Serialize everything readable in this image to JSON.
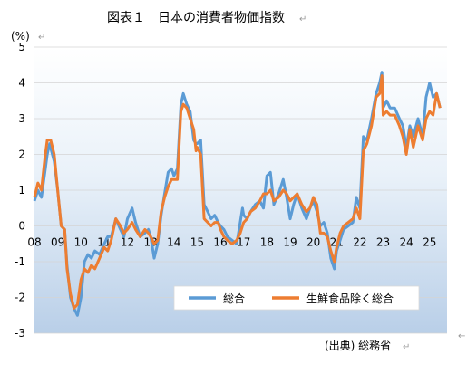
{
  "chart_data": {
    "type": "line",
    "title": "図表１　日本の消費者物価指数",
    "unit_label": "(%)",
    "source": "(出典) 総務省",
    "ylim": [
      -3,
      5
    ],
    "yticks": [
      5,
      4,
      3,
      2,
      1,
      0,
      -1,
      -2,
      -3
    ],
    "xlim": [
      2008.0,
      2025.75
    ],
    "xticks": [
      {
        "label": "08",
        "x": 2008.0
      },
      {
        "label": "09",
        "x": 2009.0
      },
      {
        "label": "10",
        "x": 2010.0
      },
      {
        "label": "11",
        "x": 2011.0
      },
      {
        "label": "12",
        "x": 2012.0
      },
      {
        "label": "13",
        "x": 2013.0
      },
      {
        "label": "14",
        "x": 2014.0
      },
      {
        "label": "15",
        "x": 2015.0
      },
      {
        "label": "16",
        "x": 2016.0
      },
      {
        "label": "17",
        "x": 2017.0
      },
      {
        "label": "18",
        "x": 2018.0
      },
      {
        "label": "19",
        "x": 2019.0
      },
      {
        "label": "20",
        "x": 2020.0
      },
      {
        "label": "21",
        "x": 2021.0
      },
      {
        "label": "22",
        "x": 2022.0
      },
      {
        "label": "23",
        "x": 2023.0
      },
      {
        "label": "24",
        "x": 2024.0
      },
      {
        "label": "25",
        "x": 2025.0
      }
    ],
    "legend_position": "bottom-right",
    "grid": true,
    "series": [
      {
        "name": "総合",
        "color": "#5B9BD5",
        "points": [
          [
            2008.0,
            0.7
          ],
          [
            2008.15,
            1.0
          ],
          [
            2008.3,
            0.8
          ],
          [
            2008.45,
            1.5
          ],
          [
            2008.55,
            2.0
          ],
          [
            2008.65,
            2.3
          ],
          [
            2008.85,
            1.8
          ],
          [
            2009.0,
            1.0
          ],
          [
            2009.15,
            0.0
          ],
          [
            2009.3,
            -0.1
          ],
          [
            2009.4,
            -1.1
          ],
          [
            2009.55,
            -2.0
          ],
          [
            2009.7,
            -2.3
          ],
          [
            2009.85,
            -2.5
          ],
          [
            2010.0,
            -2.0
          ],
          [
            2010.15,
            -1.0
          ],
          [
            2010.3,
            -0.8
          ],
          [
            2010.45,
            -0.9
          ],
          [
            2010.6,
            -0.7
          ],
          [
            2010.8,
            -0.8
          ],
          [
            2011.0,
            -0.5
          ],
          [
            2011.15,
            -0.3
          ],
          [
            2011.3,
            -0.3
          ],
          [
            2011.5,
            0.2
          ],
          [
            2011.7,
            -0.1
          ],
          [
            2011.85,
            -0.3
          ],
          [
            2012.0,
            0.2
          ],
          [
            2012.2,
            0.5
          ],
          [
            2012.35,
            0.1
          ],
          [
            2012.55,
            -0.3
          ],
          [
            2012.75,
            -0.2
          ],
          [
            2012.9,
            -0.1
          ],
          [
            2013.0,
            -0.3
          ],
          [
            2013.15,
            -0.9
          ],
          [
            2013.3,
            -0.5
          ],
          [
            2013.45,
            0.3
          ],
          [
            2013.6,
            0.9
          ],
          [
            2013.75,
            1.5
          ],
          [
            2013.9,
            1.6
          ],
          [
            2014.0,
            1.4
          ],
          [
            2014.15,
            1.6
          ],
          [
            2014.3,
            3.4
          ],
          [
            2014.4,
            3.7
          ],
          [
            2014.55,
            3.4
          ],
          [
            2014.7,
            3.2
          ],
          [
            2014.85,
            2.4
          ],
          [
            2014.95,
            2.3
          ],
          [
            2015.0,
            2.3
          ],
          [
            2015.15,
            2.4
          ],
          [
            2015.3,
            0.6
          ],
          [
            2015.45,
            0.4
          ],
          [
            2015.6,
            0.2
          ],
          [
            2015.75,
            0.3
          ],
          [
            2015.9,
            0.1
          ],
          [
            2016.0,
            0.0
          ],
          [
            2016.15,
            -0.1
          ],
          [
            2016.3,
            -0.3
          ],
          [
            2016.5,
            -0.4
          ],
          [
            2016.7,
            -0.5
          ],
          [
            2016.85,
            0.1
          ],
          [
            2016.95,
            0.5
          ],
          [
            2017.0,
            0.3
          ],
          [
            2017.15,
            0.2
          ],
          [
            2017.3,
            0.4
          ],
          [
            2017.5,
            0.6
          ],
          [
            2017.7,
            0.7
          ],
          [
            2017.85,
            0.5
          ],
          [
            2018.0,
            1.4
          ],
          [
            2018.15,
            1.5
          ],
          [
            2018.3,
            0.6
          ],
          [
            2018.5,
            0.9
          ],
          [
            2018.7,
            1.3
          ],
          [
            2018.85,
            0.8
          ],
          [
            2019.0,
            0.2
          ],
          [
            2019.15,
            0.6
          ],
          [
            2019.3,
            0.9
          ],
          [
            2019.5,
            0.5
          ],
          [
            2019.7,
            0.2
          ],
          [
            2019.85,
            0.5
          ],
          [
            2020.0,
            0.7
          ],
          [
            2020.15,
            0.4
          ],
          [
            2020.3,
            0.0
          ],
          [
            2020.45,
            0.1
          ],
          [
            2020.6,
            -0.2
          ],
          [
            2020.75,
            -0.9
          ],
          [
            2020.9,
            -1.2
          ],
          [
            2021.0,
            -0.7
          ],
          [
            2021.15,
            -0.4
          ],
          [
            2021.3,
            -0.1
          ],
          [
            2021.5,
            0.0
          ],
          [
            2021.7,
            0.1
          ],
          [
            2021.85,
            0.8
          ],
          [
            2022.0,
            0.5
          ],
          [
            2022.15,
            2.5
          ],
          [
            2022.3,
            2.4
          ],
          [
            2022.5,
            3.0
          ],
          [
            2022.7,
            3.7
          ],
          [
            2022.85,
            4.0
          ],
          [
            2022.95,
            4.3
          ],
          [
            2023.0,
            3.3
          ],
          [
            2023.15,
            3.5
          ],
          [
            2023.3,
            3.3
          ],
          [
            2023.5,
            3.3
          ],
          [
            2023.7,
            3.0
          ],
          [
            2023.85,
            2.8
          ],
          [
            2024.0,
            2.2
          ],
          [
            2024.15,
            2.8
          ],
          [
            2024.3,
            2.5
          ],
          [
            2024.5,
            3.0
          ],
          [
            2024.7,
            2.5
          ],
          [
            2024.85,
            3.6
          ],
          [
            2025.0,
            4.0
          ],
          [
            2025.15,
            3.6
          ],
          [
            2025.3,
            3.7
          ],
          [
            2025.45,
            3.3
          ]
        ]
      },
      {
        "name": "生鮮食品除く総合",
        "color": "#ED7D31",
        "points": [
          [
            2008.0,
            0.8
          ],
          [
            2008.15,
            1.2
          ],
          [
            2008.3,
            1.0
          ],
          [
            2008.45,
            1.9
          ],
          [
            2008.55,
            2.4
          ],
          [
            2008.7,
            2.4
          ],
          [
            2008.85,
            2.0
          ],
          [
            2009.0,
            1.0
          ],
          [
            2009.15,
            0.0
          ],
          [
            2009.3,
            -0.1
          ],
          [
            2009.4,
            -1.2
          ],
          [
            2009.55,
            -1.9
          ],
          [
            2009.7,
            -2.3
          ],
          [
            2009.85,
            -2.2
          ],
          [
            2010.0,
            -1.5
          ],
          [
            2010.15,
            -1.2
          ],
          [
            2010.3,
            -1.3
          ],
          [
            2010.45,
            -1.1
          ],
          [
            2010.6,
            -1.2
          ],
          [
            2010.8,
            -0.9
          ],
          [
            2011.0,
            -0.6
          ],
          [
            2011.15,
            -0.7
          ],
          [
            2011.3,
            -0.4
          ],
          [
            2011.5,
            0.2
          ],
          [
            2011.7,
            0.0
          ],
          [
            2011.85,
            -0.2
          ],
          [
            2012.0,
            -0.1
          ],
          [
            2012.2,
            0.1
          ],
          [
            2012.35,
            -0.1
          ],
          [
            2012.55,
            -0.3
          ],
          [
            2012.75,
            -0.1
          ],
          [
            2012.9,
            -0.2
          ],
          [
            2013.0,
            -0.3
          ],
          [
            2013.15,
            -0.5
          ],
          [
            2013.3,
            -0.4
          ],
          [
            2013.45,
            0.4
          ],
          [
            2013.6,
            0.8
          ],
          [
            2013.75,
            1.1
          ],
          [
            2013.9,
            1.3
          ],
          [
            2014.0,
            1.3
          ],
          [
            2014.15,
            1.3
          ],
          [
            2014.3,
            3.2
          ],
          [
            2014.4,
            3.4
          ],
          [
            2014.55,
            3.3
          ],
          [
            2014.7,
            3.0
          ],
          [
            2014.85,
            2.7
          ],
          [
            2014.95,
            2.1
          ],
          [
            2015.0,
            2.2
          ],
          [
            2015.15,
            2.0
          ],
          [
            2015.3,
            0.2
          ],
          [
            2015.45,
            0.1
          ],
          [
            2015.6,
            0.0
          ],
          [
            2015.75,
            0.1
          ],
          [
            2015.9,
            0.1
          ],
          [
            2016.0,
            -0.1
          ],
          [
            2016.15,
            -0.3
          ],
          [
            2016.3,
            -0.4
          ],
          [
            2016.5,
            -0.5
          ],
          [
            2016.7,
            -0.4
          ],
          [
            2016.85,
            -0.2
          ],
          [
            2016.95,
            0.0
          ],
          [
            2017.0,
            0.1
          ],
          [
            2017.15,
            0.2
          ],
          [
            2017.3,
            0.4
          ],
          [
            2017.5,
            0.5
          ],
          [
            2017.7,
            0.7
          ],
          [
            2017.85,
            0.9
          ],
          [
            2018.0,
            0.9
          ],
          [
            2018.15,
            1.0
          ],
          [
            2018.3,
            0.7
          ],
          [
            2018.5,
            0.8
          ],
          [
            2018.7,
            1.0
          ],
          [
            2018.85,
            0.9
          ],
          [
            2019.0,
            0.7
          ],
          [
            2019.15,
            0.8
          ],
          [
            2019.3,
            0.9
          ],
          [
            2019.5,
            0.6
          ],
          [
            2019.7,
            0.4
          ],
          [
            2019.85,
            0.5
          ],
          [
            2020.0,
            0.8
          ],
          [
            2020.15,
            0.6
          ],
          [
            2020.3,
            -0.2
          ],
          [
            2020.45,
            -0.2
          ],
          [
            2020.6,
            -0.3
          ],
          [
            2020.75,
            -0.7
          ],
          [
            2020.9,
            -1.0
          ],
          [
            2021.0,
            -0.6
          ],
          [
            2021.15,
            -0.2
          ],
          [
            2021.3,
            0.0
          ],
          [
            2021.5,
            0.1
          ],
          [
            2021.7,
            0.2
          ],
          [
            2021.85,
            0.5
          ],
          [
            2022.0,
            0.2
          ],
          [
            2022.15,
            2.1
          ],
          [
            2022.3,
            2.3
          ],
          [
            2022.5,
            2.8
          ],
          [
            2022.7,
            3.6
          ],
          [
            2022.85,
            3.7
          ],
          [
            2022.95,
            4.2
          ],
          [
            2023.0,
            3.1
          ],
          [
            2023.15,
            3.2
          ],
          [
            2023.3,
            3.1
          ],
          [
            2023.5,
            3.1
          ],
          [
            2023.7,
            2.8
          ],
          [
            2023.85,
            2.5
          ],
          [
            2024.0,
            2.0
          ],
          [
            2024.15,
            2.7
          ],
          [
            2024.3,
            2.2
          ],
          [
            2024.5,
            2.8
          ],
          [
            2024.7,
            2.4
          ],
          [
            2024.85,
            3.0
          ],
          [
            2025.0,
            3.2
          ],
          [
            2025.15,
            3.1
          ],
          [
            2025.3,
            3.7
          ],
          [
            2025.45,
            3.3
          ]
        ]
      }
    ]
  }
}
